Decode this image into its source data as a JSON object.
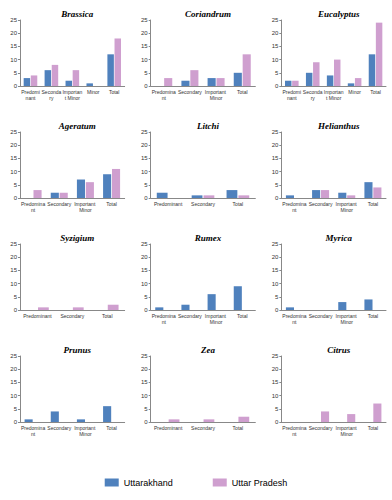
{
  "chart_data": [
    {
      "type": "bar",
      "title": "Brassica",
      "categories": [
        "Predominant",
        "Secondary",
        "Important Minor",
        "Minor",
        "Total"
      ],
      "series": [
        {
          "name": "Uttarakhand",
          "color": "#4f81bd",
          "values": [
            3,
            6,
            2,
            1,
            12
          ]
        },
        {
          "name": "Uttar Pradesh",
          "color": "#cf9fcf",
          "values": [
            4,
            8,
            6,
            0,
            18
          ]
        }
      ],
      "ylim": [
        0,
        25
      ],
      "yticks": [
        0,
        5,
        10,
        15,
        20,
        25
      ],
      "grid": false,
      "legend": "bottom"
    },
    {
      "type": "bar",
      "title": "Coriandrum",
      "categories": [
        "Predominant",
        "Secondary",
        "Important Minor",
        "Total"
      ],
      "series": [
        {
          "name": "Uttarakhand",
          "color": "#4f81bd",
          "values": [
            0,
            2,
            3,
            5
          ]
        },
        {
          "name": "Uttar Pradesh",
          "color": "#cf9fcf",
          "values": [
            3,
            6,
            3,
            12
          ]
        }
      ],
      "ylim": [
        0,
        25
      ],
      "yticks": [
        0,
        5,
        10,
        15,
        20,
        25
      ],
      "grid": false,
      "legend": "bottom"
    },
    {
      "type": "bar",
      "title": "Eucalyptus",
      "categories": [
        "Predominant",
        "Secondary",
        "Important Minor",
        "Minor",
        "Total"
      ],
      "series": [
        {
          "name": "Uttarakhand",
          "color": "#4f81bd",
          "values": [
            2,
            5,
            4,
            1,
            12
          ]
        },
        {
          "name": "Uttar Pradesh",
          "color": "#cf9fcf",
          "values": [
            2,
            9,
            10,
            3,
            24
          ]
        }
      ],
      "ylim": [
        0,
        25
      ],
      "yticks": [
        0,
        5,
        10,
        15,
        20,
        25
      ],
      "grid": false,
      "legend": "bottom"
    },
    {
      "type": "bar",
      "title": "Ageratum",
      "categories": [
        "Predominant",
        "Secondary",
        "Important Minor",
        "Total"
      ],
      "series": [
        {
          "name": "Uttarakhand",
          "color": "#4f81bd",
          "values": [
            0,
            2,
            7,
            9
          ]
        },
        {
          "name": "Uttar Pradesh",
          "color": "#cf9fcf",
          "values": [
            3,
            2,
            6,
            11
          ]
        }
      ],
      "ylim": [
        0,
        25
      ],
      "yticks": [
        0,
        5,
        10,
        15,
        20,
        25
      ],
      "grid": false,
      "legend": "bottom"
    },
    {
      "type": "bar",
      "title": "Litchi",
      "categories": [
        "Predominant",
        "Secondary",
        "Total"
      ],
      "series": [
        {
          "name": "Uttarakhand",
          "color": "#4f81bd",
          "values": [
            2,
            1,
            3
          ]
        },
        {
          "name": "Uttar Pradesh",
          "color": "#cf9fcf",
          "values": [
            0,
            1,
            1
          ]
        }
      ],
      "ylim": [
        0,
        25
      ],
      "yticks": [
        0,
        5,
        10,
        15,
        20,
        25
      ],
      "grid": false,
      "legend": "bottom"
    },
    {
      "type": "bar",
      "title": "Helianthus",
      "categories": [
        "Predominant",
        "Secondary",
        "Important Minor",
        "Total"
      ],
      "series": [
        {
          "name": "Uttarakhand",
          "color": "#4f81bd",
          "values": [
            1,
            3,
            2,
            6
          ]
        },
        {
          "name": "Uttar Pradesh",
          "color": "#cf9fcf",
          "values": [
            0,
            3,
            1,
            4
          ]
        }
      ],
      "ylim": [
        0,
        25
      ],
      "yticks": [
        0,
        5,
        10,
        15,
        20,
        25
      ],
      "grid": false,
      "legend": "bottom"
    },
    {
      "type": "bar",
      "title": "Syzigium",
      "categories": [
        "Predominant",
        "Secondary",
        "Total"
      ],
      "series": [
        {
          "name": "Uttarakhand",
          "color": "#4f81bd",
          "values": [
            0,
            0,
            0
          ]
        },
        {
          "name": "Uttar Pradesh",
          "color": "#cf9fcf",
          "values": [
            1,
            1,
            2
          ]
        }
      ],
      "ylim": [
        0,
        25
      ],
      "yticks": [
        0,
        5,
        10,
        15,
        20,
        25
      ],
      "grid": false,
      "legend": "bottom"
    },
    {
      "type": "bar",
      "title": "Rumex",
      "categories": [
        "Predominant",
        "Secondary",
        "Important Minor",
        "Total"
      ],
      "series": [
        {
          "name": "Uttarakhand",
          "color": "#4f81bd",
          "values": [
            1,
            2,
            6,
            9
          ]
        },
        {
          "name": "Uttar Pradesh",
          "color": "#cf9fcf",
          "values": [
            0,
            0,
            0,
            0
          ]
        }
      ],
      "ylim": [
        0,
        25
      ],
      "yticks": [
        0,
        5,
        10,
        15,
        20,
        25
      ],
      "grid": false,
      "legend": "bottom"
    },
    {
      "type": "bar",
      "title": "Myrica",
      "categories": [
        "Predominant",
        "Secondary",
        "Important Minor",
        "Total"
      ],
      "series": [
        {
          "name": "Uttarakhand",
          "color": "#4f81bd",
          "values": [
            1,
            0,
            3,
            4
          ]
        },
        {
          "name": "Uttar Pradesh",
          "color": "#cf9fcf",
          "values": [
            0,
            0,
            0,
            0
          ]
        }
      ],
      "ylim": [
        0,
        25
      ],
      "yticks": [
        0,
        5,
        10,
        15,
        20,
        25
      ],
      "grid": false,
      "legend": "bottom"
    },
    {
      "type": "bar",
      "title": "Prunus",
      "categories": [
        "Predominant",
        "Secondary",
        "Important Minor",
        "Total"
      ],
      "series": [
        {
          "name": "Uttarakhand",
          "color": "#4f81bd",
          "values": [
            1,
            4,
            1,
            6
          ]
        },
        {
          "name": "Uttar Pradesh",
          "color": "#cf9fcf",
          "values": [
            0,
            0,
            0,
            0
          ]
        }
      ],
      "ylim": [
        0,
        25
      ],
      "yticks": [
        0,
        5,
        10,
        15,
        20,
        25
      ],
      "grid": false,
      "legend": "bottom"
    },
    {
      "type": "bar",
      "title": "Zea",
      "categories": [
        "Predominant",
        "Secondary",
        "Total"
      ],
      "series": [
        {
          "name": "Uttarakhand",
          "color": "#4f81bd",
          "values": [
            0,
            0,
            0
          ]
        },
        {
          "name": "Uttar Pradesh",
          "color": "#cf9fcf",
          "values": [
            1,
            1,
            2
          ]
        }
      ],
      "ylim": [
        0,
        25
      ],
      "yticks": [
        0,
        5,
        10,
        15,
        20,
        25
      ],
      "grid": false,
      "legend": "bottom"
    },
    {
      "type": "bar",
      "title": "Citrus",
      "categories": [
        "Predominant",
        "Secondary",
        "Important Minor",
        "Total"
      ],
      "series": [
        {
          "name": "Uttarakhand",
          "color": "#4f81bd",
          "values": [
            0,
            0,
            0,
            0
          ]
        },
        {
          "name": "Uttar Pradesh",
          "color": "#cf9fcf",
          "values": [
            0,
            4,
            3,
            7
          ]
        }
      ],
      "ylim": [
        0,
        25
      ],
      "yticks": [
        0,
        5,
        10,
        15,
        20,
        25
      ],
      "grid": false,
      "legend": "bottom"
    }
  ]
}
